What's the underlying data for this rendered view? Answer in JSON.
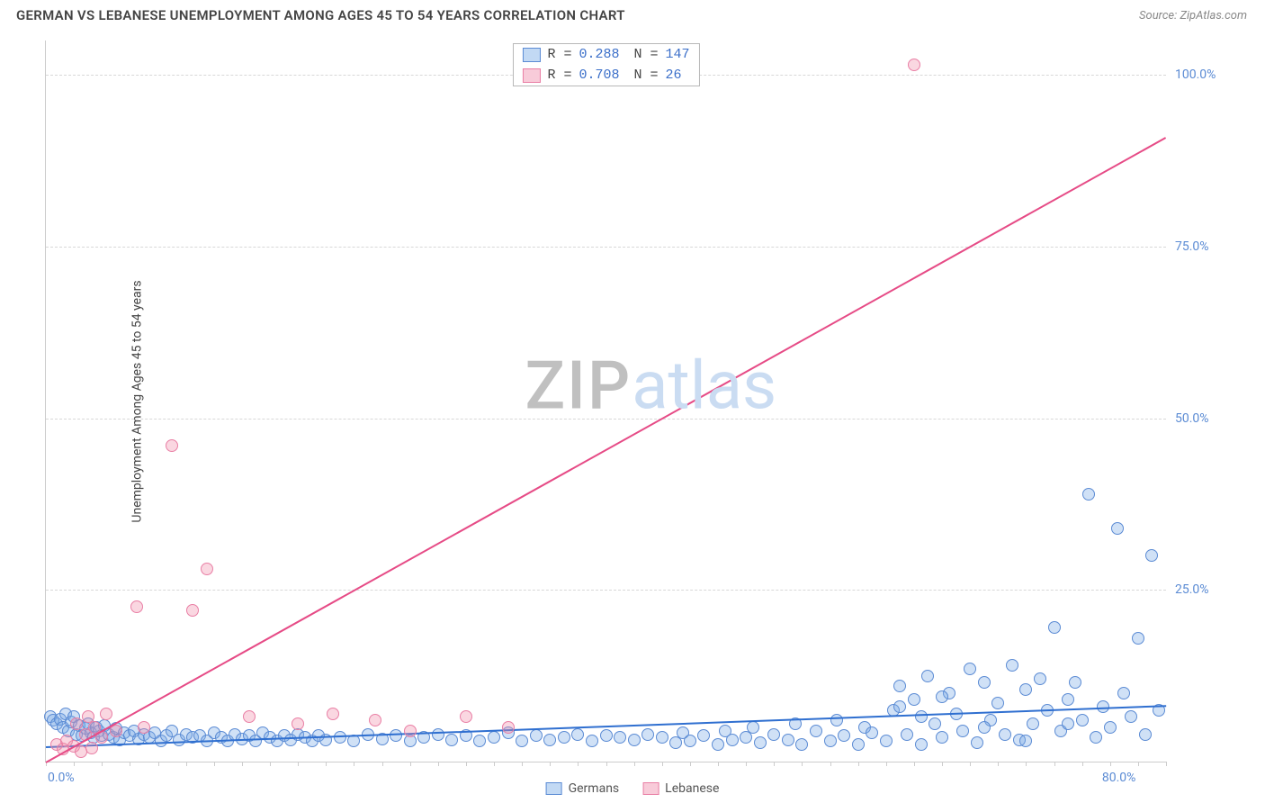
{
  "header": {
    "title": "GERMAN VS LEBANESE UNEMPLOYMENT AMONG AGES 45 TO 54 YEARS CORRELATION CHART",
    "source_prefix": "Source: ",
    "source_name": "ZipAtlas.com"
  },
  "chart": {
    "type": "scatter",
    "y_axis_label": "Unemployment Among Ages 45 to 54 years",
    "xlim": [
      0,
      80
    ],
    "ylim": [
      0,
      105
    ],
    "x_ticks": [
      0,
      80
    ],
    "x_tick_labels": [
      "0.0%",
      "80.0%"
    ],
    "x_minor_tick_step": 2,
    "y_ticks": [
      25,
      50,
      75,
      100
    ],
    "y_tick_labels": [
      "25.0%",
      "50.0%",
      "75.0%",
      "100.0%"
    ],
    "grid_color": "#d8d8d8",
    "axis_color": "#cccccc",
    "background_color": "#ffffff",
    "tick_label_color": "#5b8bd4",
    "tick_label_fontsize": 14,
    "axis_label_color": "#444444",
    "axis_label_fontsize": 14,
    "marker_radius": 7,
    "marker_stroke_width": 1.3,
    "watermark": {
      "zip": "ZIP",
      "atlas": "atlas",
      "zip_color": "#c0c0c0",
      "atlas_color": "#cadcf2",
      "fontsize": 74
    },
    "series": [
      {
        "name": "Germans",
        "fill_color": "rgba(120,170,230,0.35)",
        "stroke_color": "#5b8bd4",
        "trend": {
          "x1": 0,
          "y1": 2.2,
          "x2": 80,
          "y2": 8.2,
          "color": "#2f6fd0",
          "width": 2
        },
        "points": [
          [
            0.3,
            6.5
          ],
          [
            0.5,
            6.0
          ],
          [
            0.8,
            5.5
          ],
          [
            1.0,
            6.2
          ],
          [
            1.2,
            5.0
          ],
          [
            1.4,
            7.0
          ],
          [
            1.6,
            4.5
          ],
          [
            1.8,
            5.8
          ],
          [
            2.0,
            6.5
          ],
          [
            2.2,
            4.0
          ],
          [
            2.4,
            5.2
          ],
          [
            2.6,
            3.8
          ],
          [
            2.8,
            4.8
          ],
          [
            3.0,
            5.5
          ],
          [
            3.2,
            4.2
          ],
          [
            3.4,
            3.5
          ],
          [
            3.6,
            5.0
          ],
          [
            3.8,
            4.5
          ],
          [
            4.0,
            3.8
          ],
          [
            4.2,
            5.2
          ],
          [
            4.5,
            4.0
          ],
          [
            4.8,
            3.5
          ],
          [
            5.0,
            4.8
          ],
          [
            5.3,
            3.2
          ],
          [
            5.6,
            4.2
          ],
          [
            6.0,
            3.8
          ],
          [
            6.3,
            4.5
          ],
          [
            6.6,
            3.3
          ],
          [
            7.0,
            4.0
          ],
          [
            7.4,
            3.5
          ],
          [
            7.8,
            4.2
          ],
          [
            8.2,
            3.0
          ],
          [
            8.6,
            3.8
          ],
          [
            9.0,
            4.5
          ],
          [
            9.5,
            3.2
          ],
          [
            10.0,
            4.0
          ],
          [
            10.5,
            3.5
          ],
          [
            11.0,
            3.8
          ],
          [
            11.5,
            3.0
          ],
          [
            12.0,
            4.2
          ],
          [
            12.5,
            3.5
          ],
          [
            13.0,
            3.0
          ],
          [
            13.5,
            4.0
          ],
          [
            14.0,
            3.3
          ],
          [
            14.5,
            3.8
          ],
          [
            15.0,
            3.0
          ],
          [
            15.5,
            4.2
          ],
          [
            16.0,
            3.5
          ],
          [
            16.5,
            3.0
          ],
          [
            17.0,
            3.8
          ],
          [
            17.5,
            3.2
          ],
          [
            18.0,
            4.0
          ],
          [
            18.5,
            3.5
          ],
          [
            19.0,
            3.0
          ],
          [
            19.5,
            3.8
          ],
          [
            20.0,
            3.2
          ],
          [
            21.0,
            3.5
          ],
          [
            22.0,
            3.0
          ],
          [
            23.0,
            4.0
          ],
          [
            24.0,
            3.3
          ],
          [
            25.0,
            3.8
          ],
          [
            26.0,
            3.0
          ],
          [
            27.0,
            3.5
          ],
          [
            28.0,
            4.0
          ],
          [
            29.0,
            3.2
          ],
          [
            30.0,
            3.8
          ],
          [
            31.0,
            3.0
          ],
          [
            32.0,
            3.5
          ],
          [
            33.0,
            4.2
          ],
          [
            34.0,
            3.0
          ],
          [
            35.0,
            3.8
          ],
          [
            36.0,
            3.2
          ],
          [
            37.0,
            3.5
          ],
          [
            38.0,
            4.0
          ],
          [
            39.0,
            3.0
          ],
          [
            40.0,
            3.8
          ],
          [
            41.0,
            3.5
          ],
          [
            42.0,
            3.2
          ],
          [
            43.0,
            4.0
          ],
          [
            44.0,
            3.5
          ],
          [
            45.0,
            2.8
          ],
          [
            45.5,
            4.2
          ],
          [
            46.0,
            3.0
          ],
          [
            47.0,
            3.8
          ],
          [
            48.0,
            2.5
          ],
          [
            48.5,
            4.5
          ],
          [
            49.0,
            3.2
          ],
          [
            50.0,
            3.5
          ],
          [
            50.5,
            5.0
          ],
          [
            51.0,
            2.8
          ],
          [
            52.0,
            4.0
          ],
          [
            53.0,
            3.2
          ],
          [
            53.5,
            5.5
          ],
          [
            54.0,
            2.5
          ],
          [
            55.0,
            4.5
          ],
          [
            56.0,
            3.0
          ],
          [
            56.5,
            6.0
          ],
          [
            57.0,
            3.8
          ],
          [
            58.0,
            2.5
          ],
          [
            58.5,
            5.0
          ],
          [
            59.0,
            4.2
          ],
          [
            60.0,
            3.0
          ],
          [
            60.5,
            7.5
          ],
          [
            61.0,
            11.0
          ],
          [
            61.5,
            4.0
          ],
          [
            62.0,
            9.0
          ],
          [
            62.5,
            2.5
          ],
          [
            63.0,
            12.5
          ],
          [
            63.5,
            5.5
          ],
          [
            64.0,
            3.5
          ],
          [
            64.5,
            10.0
          ],
          [
            65.0,
            7.0
          ],
          [
            65.5,
            4.5
          ],
          [
            66.0,
            13.5
          ],
          [
            66.5,
            2.8
          ],
          [
            67.0,
            11.5
          ],
          [
            67.5,
            6.0
          ],
          [
            68.0,
            8.5
          ],
          [
            68.5,
            4.0
          ],
          [
            69.0,
            14.0
          ],
          [
            69.5,
            3.2
          ],
          [
            70.0,
            10.5
          ],
          [
            70.5,
            5.5
          ],
          [
            71.0,
            12.0
          ],
          [
            71.5,
            7.5
          ],
          [
            72.0,
            19.5
          ],
          [
            72.5,
            4.5
          ],
          [
            73.0,
            9.0
          ],
          [
            73.5,
            11.5
          ],
          [
            74.0,
            6.0
          ],
          [
            74.5,
            39.0
          ],
          [
            75.0,
            3.5
          ],
          [
            75.5,
            8.0
          ],
          [
            76.0,
            5.0
          ],
          [
            76.5,
            34.0
          ],
          [
            77.0,
            10.0
          ],
          [
            77.5,
            6.5
          ],
          [
            78.0,
            18.0
          ],
          [
            78.5,
            4.0
          ],
          [
            79.0,
            30.0
          ],
          [
            79.5,
            7.5
          ],
          [
            61.0,
            8.0
          ],
          [
            62.5,
            6.5
          ],
          [
            64.0,
            9.5
          ],
          [
            67.0,
            5.0
          ],
          [
            70.0,
            3.0
          ],
          [
            73.0,
            5.5
          ]
        ]
      },
      {
        "name": "Lebanese",
        "fill_color": "rgba(240,140,170,0.35)",
        "stroke_color": "#e97fa5",
        "trend": {
          "x1": 0,
          "y1": 0,
          "x2": 80,
          "y2": 91.0,
          "color": "#e64b86",
          "width": 2
        },
        "points": [
          [
            0.8,
            2.5
          ],
          [
            1.2,
            1.8
          ],
          [
            1.5,
            3.0
          ],
          [
            2.0,
            2.2
          ],
          [
            2.2,
            5.5
          ],
          [
            2.5,
            1.5
          ],
          [
            2.8,
            4.0
          ],
          [
            3.0,
            6.5
          ],
          [
            3.3,
            2.0
          ],
          [
            3.5,
            5.0
          ],
          [
            4.0,
            3.5
          ],
          [
            4.3,
            7.0
          ],
          [
            5.0,
            4.5
          ],
          [
            6.5,
            22.5
          ],
          [
            7.0,
            5.0
          ],
          [
            9.0,
            46.0
          ],
          [
            10.5,
            22.0
          ],
          [
            11.5,
            28.0
          ],
          [
            14.5,
            6.5
          ],
          [
            18.0,
            5.5
          ],
          [
            20.5,
            7.0
          ],
          [
            23.5,
            6.0
          ],
          [
            26.0,
            4.5
          ],
          [
            30.0,
            6.5
          ],
          [
            33.0,
            5.0
          ],
          [
            62.0,
            101.5
          ]
        ]
      }
    ],
    "stats_box": {
      "border_color": "#b8b8b8",
      "text_color": "#444444",
      "value_color": "#3b6fc9",
      "fontsize": 15,
      "rows": [
        {
          "swatch_fill": "rgba(120,170,230,0.45)",
          "swatch_stroke": "#5b8bd4",
          "r_label": "R =",
          "r_value": "0.288",
          "n_label": "N =",
          "n_value": "147"
        },
        {
          "swatch_fill": "rgba(240,140,170,0.45)",
          "swatch_stroke": "#e97fa5",
          "r_label": "R =",
          "r_value": "0.708",
          "n_label": "N =",
          "n_value": " 26"
        }
      ]
    },
    "bottom_legend": {
      "fontsize": 14,
      "text_color": "#555555",
      "items": [
        {
          "swatch_fill": "rgba(120,170,230,0.45)",
          "swatch_stroke": "#5b8bd4",
          "label": "Germans"
        },
        {
          "swatch_fill": "rgba(240,140,170,0.45)",
          "swatch_stroke": "#e97fa5",
          "label": "Lebanese"
        }
      ]
    }
  }
}
